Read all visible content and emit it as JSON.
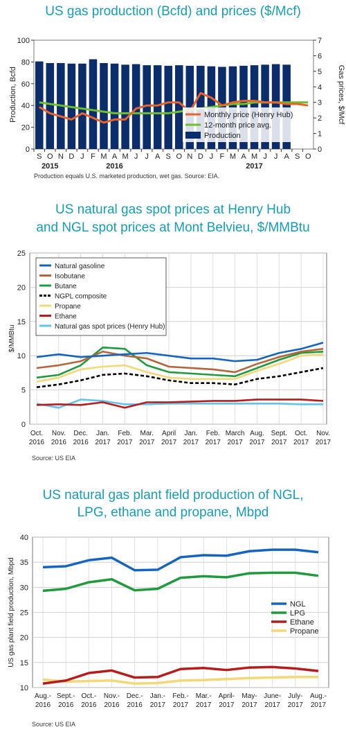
{
  "colors": {
    "title": "#1a9bb5",
    "navy": "#0b2d6b",
    "orange": "#e8642d",
    "green": "#6cbf2e",
    "blue": "#1565c0",
    "brown": "#b5653c",
    "darkgreen": "#1f9a3c",
    "yellow": "#f4d776",
    "red": "#b71c1c",
    "lightblue": "#62c3ea",
    "black": "#000000"
  },
  "chart_data": [
    {
      "type": "bar",
      "title": "US gas production (Bcfd) and prices ($/Mcf)",
      "ylabel": "Production, Bcfd",
      "y2label": "Gas prices, $/Mcf",
      "ylim": [
        0,
        100
      ],
      "y2lim": [
        0,
        7
      ],
      "yticks": [
        "0",
        "20",
        "40",
        "60",
        "80",
        "100"
      ],
      "y2ticks": [
        "0",
        "1",
        "2",
        "3",
        "4",
        "5",
        "6",
        "7"
      ],
      "months": [
        "S",
        "O",
        "N",
        "D",
        "J",
        "F",
        "M",
        "A",
        "M",
        "J",
        "J",
        "A",
        "S",
        "O",
        "N",
        "D",
        "J",
        "F",
        "M",
        "A",
        "M",
        "J",
        "J",
        "A",
        "S",
        "O"
      ],
      "years": [
        "2015",
        "2016",
        "2017"
      ],
      "grid": false,
      "legend_position": "bottom-right",
      "series": [
        {
          "name": "Production",
          "kind": "bar",
          "values": [
            80.5,
            79,
            79,
            78.5,
            78.5,
            82.5,
            79,
            78.5,
            77.5,
            78,
            77,
            77,
            76.5,
            77,
            76.5,
            76.5,
            76,
            75.5,
            76,
            76.5,
            77,
            77.5,
            78,
            77.5,
            null,
            null
          ]
        },
        {
          "name": "Monthly price (Henry Hub)",
          "kind": "line",
          "values": [
            2.7,
            2.3,
            2.1,
            1.9,
            2.3,
            2.0,
            1.7,
            1.9,
            1.9,
            2.6,
            2.8,
            2.8,
            3.0,
            3.0,
            2.4,
            3.6,
            3.3,
            2.8,
            3.0,
            3.1,
            3.1,
            3.0,
            3.0,
            2.9,
            2.9,
            2.8
          ]
        },
        {
          "name": "12-month price avg.",
          "kind": "line",
          "values": [
            3.0,
            2.9,
            2.8,
            2.7,
            2.6,
            2.5,
            2.4,
            2.3,
            2.3,
            2.3,
            2.3,
            2.3,
            2.3,
            2.4,
            2.5,
            2.6,
            2.7,
            2.8,
            2.9,
            2.9,
            3.0,
            3.0,
            3.0,
            3.0,
            3.0,
            3.0
          ]
        }
      ],
      "note": "Production equals U.S. marketed production, wet gas. Source: EIA."
    },
    {
      "type": "line",
      "title_line1": "US natural gas spot prices at Henry Hub",
      "title_line2": "and NGL spot prices at Mont Belvieu, $/MMBtu",
      "ylabel": "$/MMBtu",
      "ylim": [
        0,
        25
      ],
      "yticks": [
        "0",
        "5",
        "10",
        "15",
        "20",
        "25"
      ],
      "grid": true,
      "legend_position": "top-left",
      "categories": [
        [
          "Oct.",
          "2016"
        ],
        [
          "Nov.",
          "2016"
        ],
        [
          "Dec.",
          "2016"
        ],
        [
          "Jan.",
          "2017"
        ],
        [
          "Feb.",
          "2017"
        ],
        [
          "Mar.",
          "2017"
        ],
        [
          "April",
          "2017"
        ],
        [
          "Jan.",
          "2017"
        ],
        [
          "Feb.",
          "2017"
        ],
        [
          "March",
          "2017"
        ],
        [
          "Aug.",
          "2017"
        ],
        [
          "Sept.",
          "2017"
        ],
        [
          "Oct.",
          "2017"
        ],
        [
          "Nov.",
          "2017"
        ]
      ],
      "series": [
        {
          "name": "Natural gasoline",
          "style": "solid",
          "values": [
            9.8,
            10.2,
            9.8,
            10.0,
            10.2,
            10.4,
            10.0,
            9.6,
            9.6,
            9.2,
            9.4,
            10.4,
            11.0,
            11.9
          ]
        },
        {
          "name": "Isobutane",
          "style": "solid",
          "values": [
            8.2,
            8.6,
            9.2,
            10.6,
            10.0,
            9.6,
            8.4,
            8.2,
            8.0,
            7.6,
            8.8,
            9.8,
            10.6,
            11.0
          ]
        },
        {
          "name": "Butane",
          "style": "solid",
          "values": [
            6.8,
            7.2,
            8.6,
            11.2,
            11.0,
            8.6,
            7.6,
            7.4,
            7.2,
            7.0,
            8.2,
            9.4,
            10.4,
            10.6
          ]
        },
        {
          "name": "NGPL composite",
          "style": "dashed",
          "values": [
            5.4,
            5.8,
            6.4,
            7.2,
            7.4,
            7.0,
            6.4,
            6.0,
            6.0,
            5.8,
            6.6,
            7.0,
            7.6,
            8.2
          ]
        },
        {
          "name": "Propane",
          "style": "solid",
          "values": [
            6.2,
            6.8,
            8.0,
            8.4,
            8.6,
            7.6,
            6.8,
            6.6,
            6.6,
            6.6,
            7.8,
            8.8,
            10.0,
            10.2
          ]
        },
        {
          "name": "Ethane",
          "style": "solid",
          "values": [
            2.8,
            2.9,
            2.8,
            3.2,
            2.4,
            3.2,
            3.2,
            3.3,
            3.4,
            3.4,
            3.6,
            3.6,
            3.6,
            3.4
          ]
        },
        {
          "name": "Natural gas spot prices (Henry Hub)",
          "style": "solid",
          "values": [
            3.0,
            2.4,
            3.6,
            3.4,
            2.9,
            2.9,
            3.0,
            3.0,
            3.0,
            3.0,
            3.0,
            3.0,
            2.9,
            2.9
          ]
        }
      ],
      "source": "Source: US EIA"
    },
    {
      "type": "line",
      "title_line1": "US natural gas plant field production of NGL,",
      "title_line2": "LPG, ethane and propane, Mbpd",
      "ylabel": "US gas plant field production, Mbpd",
      "ylim": [
        10,
        40
      ],
      "yticks": [
        "10",
        "15",
        "20",
        "25",
        "30",
        "35",
        "40"
      ],
      "grid": true,
      "legend_position": "right",
      "categories": [
        [
          "Aug.-",
          "2016"
        ],
        [
          "Sept.-",
          "2016"
        ],
        [
          "Oct.-",
          "2016"
        ],
        [
          "Nov.-",
          "2016"
        ],
        [
          "Dec.-",
          "2016"
        ],
        [
          "Jan.-",
          "2017"
        ],
        [
          "Feb.-",
          "2017"
        ],
        [
          "Mar.-",
          "2017"
        ],
        [
          "April-",
          "2017"
        ],
        [
          "May-",
          "2017"
        ],
        [
          "June-",
          "2017"
        ],
        [
          "July-",
          "2017"
        ],
        [
          "Aug.-",
          "2017"
        ]
      ],
      "series": [
        {
          "name": "NGL",
          "values": [
            34.0,
            34.2,
            35.4,
            35.9,
            33.4,
            33.5,
            36.0,
            36.4,
            36.3,
            37.2,
            37.5,
            37.5,
            37.0
          ]
        },
        {
          "name": "LPG",
          "values": [
            29.3,
            29.7,
            31.0,
            31.6,
            29.4,
            29.7,
            31.9,
            32.2,
            32.0,
            32.8,
            32.9,
            32.9,
            32.3
          ]
        },
        {
          "name": "Ethane",
          "values": [
            10.8,
            11.4,
            12.9,
            13.4,
            12.0,
            12.1,
            13.7,
            13.9,
            13.5,
            14.0,
            14.1,
            13.8,
            13.3
          ]
        },
        {
          "name": "Propane",
          "values": [
            11.6,
            11.2,
            11.3,
            11.4,
            10.8,
            10.9,
            11.4,
            11.5,
            11.7,
            11.9,
            12.0,
            12.1,
            12.1
          ]
        }
      ],
      "source": "Source: US EIA"
    }
  ]
}
